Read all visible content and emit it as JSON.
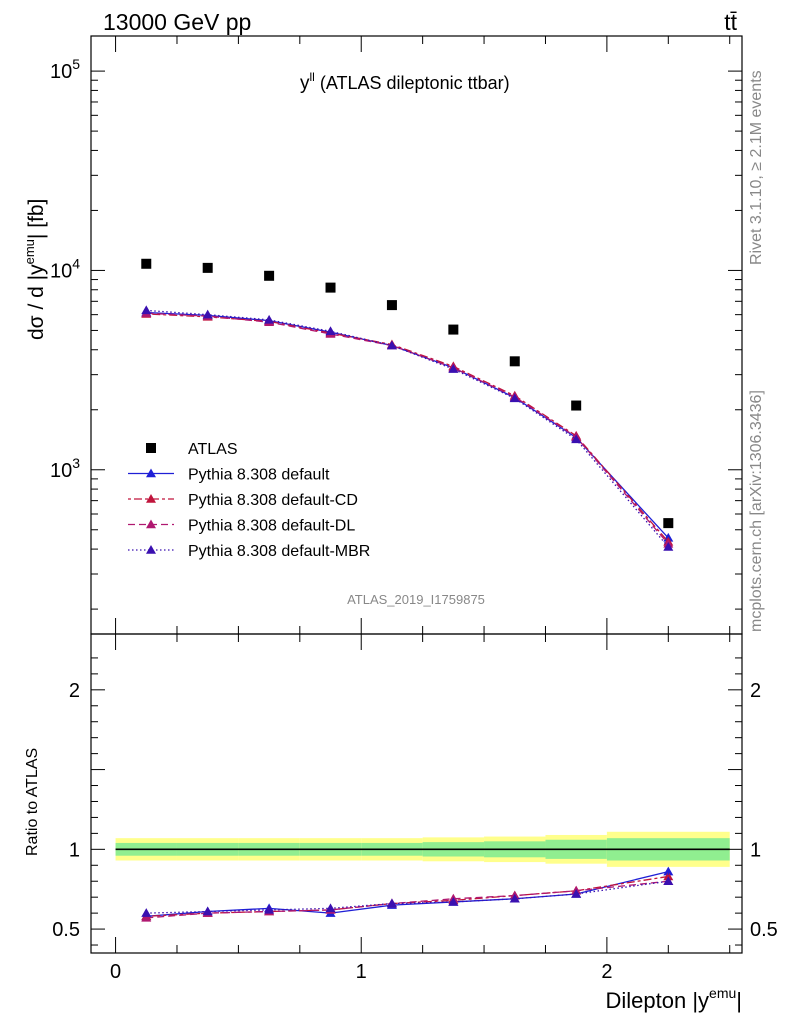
{
  "header": {
    "left": "13000 GeV pp",
    "right": "tt̄"
  },
  "side_text": {
    "rivet": "Rivet 3.1.10, ≥ 2.1M events",
    "mcplots": "mcplots.cern.ch [arXiv:1306.3436]"
  },
  "analysis_id": "ATLAS_2019_I1759875",
  "chart_data": [
    {
      "type": "line",
      "panel": "main",
      "title_main": "y",
      "title_sup": "ll",
      "title_rest": " (ATLAS dileptonic ttbar)",
      "ylabel": "dσ / d |y",
      "ylabel_sup": "emu",
      "ylabel_rest": "| [fb]",
      "yscale": "log",
      "ylim": [
        150,
        150000
      ],
      "xlim": [
        -0.1,
        2.55
      ],
      "yticks": [
        {
          "value": 1000,
          "base": "10",
          "exp": "3"
        },
        {
          "value": 10000,
          "base": "10",
          "exp": "4"
        },
        {
          "value": 100000,
          "base": "10",
          "exp": "5"
        }
      ],
      "x": [
        0.125,
        0.375,
        0.625,
        0.875,
        1.125,
        1.375,
        1.625,
        1.875,
        2.25
      ],
      "series": [
        {
          "name": "ATLAS",
          "color": "#000000",
          "marker": "square",
          "dash": "none",
          "values": [
            10800,
            10300,
            9400,
            8200,
            6700,
            5050,
            3500,
            2100,
            540
          ]
        },
        {
          "name": "Pythia 8.308 default",
          "color": "#1f1fd6",
          "marker": "triangle",
          "dash": "solid",
          "values": [
            6150,
            5950,
            5600,
            4900,
            4200,
            3250,
            2300,
            1450,
            455
          ]
        },
        {
          "name": "Pythia 8.308 default-CD",
          "color": "#c0143c",
          "marker": "triangle",
          "dash": "3,3,8,3",
          "values": [
            6050,
            5850,
            5550,
            4850,
            4250,
            3300,
            2350,
            1480,
            435
          ]
        },
        {
          "name": "Pythia 8.308 default-DL",
          "color": "#b01870",
          "marker": "triangle",
          "dash": "7,4",
          "values": [
            6100,
            5900,
            5500,
            4800,
            4200,
            3250,
            2320,
            1460,
            425
          ]
        },
        {
          "name": "Pythia 8.308 default-MBR",
          "color": "#3a10b0",
          "marker": "triangle",
          "dash": "1.5,2.5",
          "values": [
            6300,
            6000,
            5650,
            4950,
            4200,
            3200,
            2280,
            1420,
            410
          ]
        }
      ]
    },
    {
      "type": "line",
      "panel": "ratio",
      "ylabel": "Ratio to ATLAS",
      "ylim": [
        0.35,
        2.35
      ],
      "yticks": [
        0.5,
        1,
        2
      ],
      "ytick_labels": [
        "0.5",
        "1",
        "2"
      ],
      "xlabel": "Dilepton |y",
      "xlabel_sup": "emu",
      "xlabel_rest": "|",
      "xticks": [
        0,
        1,
        2
      ],
      "xtick_labels": [
        "0",
        "1",
        "2"
      ],
      "bin_edges": [
        0,
        0.25,
        0.5,
        0.75,
        1.0,
        1.25,
        1.5,
        1.75,
        2.0,
        2.5
      ],
      "band_yellow": [
        0.07,
        0.07,
        0.07,
        0.07,
        0.07,
        0.075,
        0.08,
        0.09,
        0.11
      ],
      "band_green": [
        0.04,
        0.04,
        0.04,
        0.04,
        0.04,
        0.045,
        0.05,
        0.06,
        0.07
      ],
      "x": [
        0.125,
        0.375,
        0.625,
        0.875,
        1.125,
        1.375,
        1.625,
        1.875,
        2.25
      ],
      "series": [
        {
          "name": "Pythia 8.308 default",
          "color": "#1f1fd6",
          "dash": "solid",
          "values": [
            0.58,
            0.61,
            0.63,
            0.6,
            0.65,
            0.67,
            0.69,
            0.72,
            0.86
          ]
        },
        {
          "name": "Pythia 8.308 default-CD",
          "color": "#c0143c",
          "dash": "3,3,8,3",
          "values": [
            0.58,
            0.6,
            0.61,
            0.62,
            0.66,
            0.68,
            0.71,
            0.74,
            0.83
          ]
        },
        {
          "name": "Pythia 8.308 default-DL",
          "color": "#b01870",
          "dash": "7,4",
          "values": [
            0.57,
            0.6,
            0.61,
            0.62,
            0.66,
            0.69,
            0.71,
            0.74,
            0.8
          ]
        },
        {
          "name": "Pythia 8.308 default-MBR",
          "color": "#3a10b0",
          "dash": "1.5,2.5",
          "values": [
            0.6,
            0.61,
            0.62,
            0.63,
            0.66,
            0.67,
            0.69,
            0.72,
            0.8
          ]
        }
      ]
    }
  ]
}
